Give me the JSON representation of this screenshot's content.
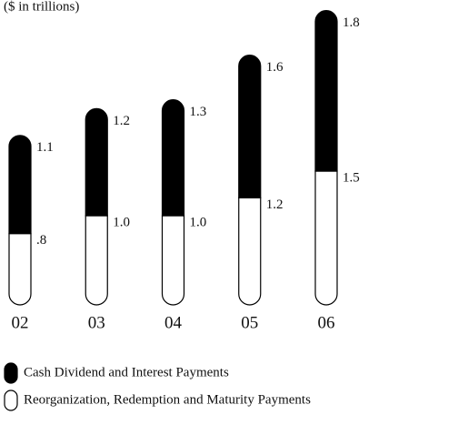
{
  "chart_data": {
    "type": "bar",
    "stacked": true,
    "subtitle": "($ in trillions)",
    "categories": [
      "02",
      "03",
      "04",
      "05",
      "06"
    ],
    "series": [
      {
        "name": "Reorganization, Redemption and Maturity Payments",
        "color": "#ffffff",
        "values": [
          0.8,
          1.0,
          1.0,
          1.2,
          1.5
        ],
        "value_labels": [
          ".8",
          "1.0",
          "1.0",
          "1.2",
          "1.5"
        ]
      },
      {
        "name": "Cash Dividend and Interest Payments",
        "color": "#000000",
        "values": [
          1.1,
          1.2,
          1.3,
          1.6,
          1.8
        ]
      }
    ]
  }
}
